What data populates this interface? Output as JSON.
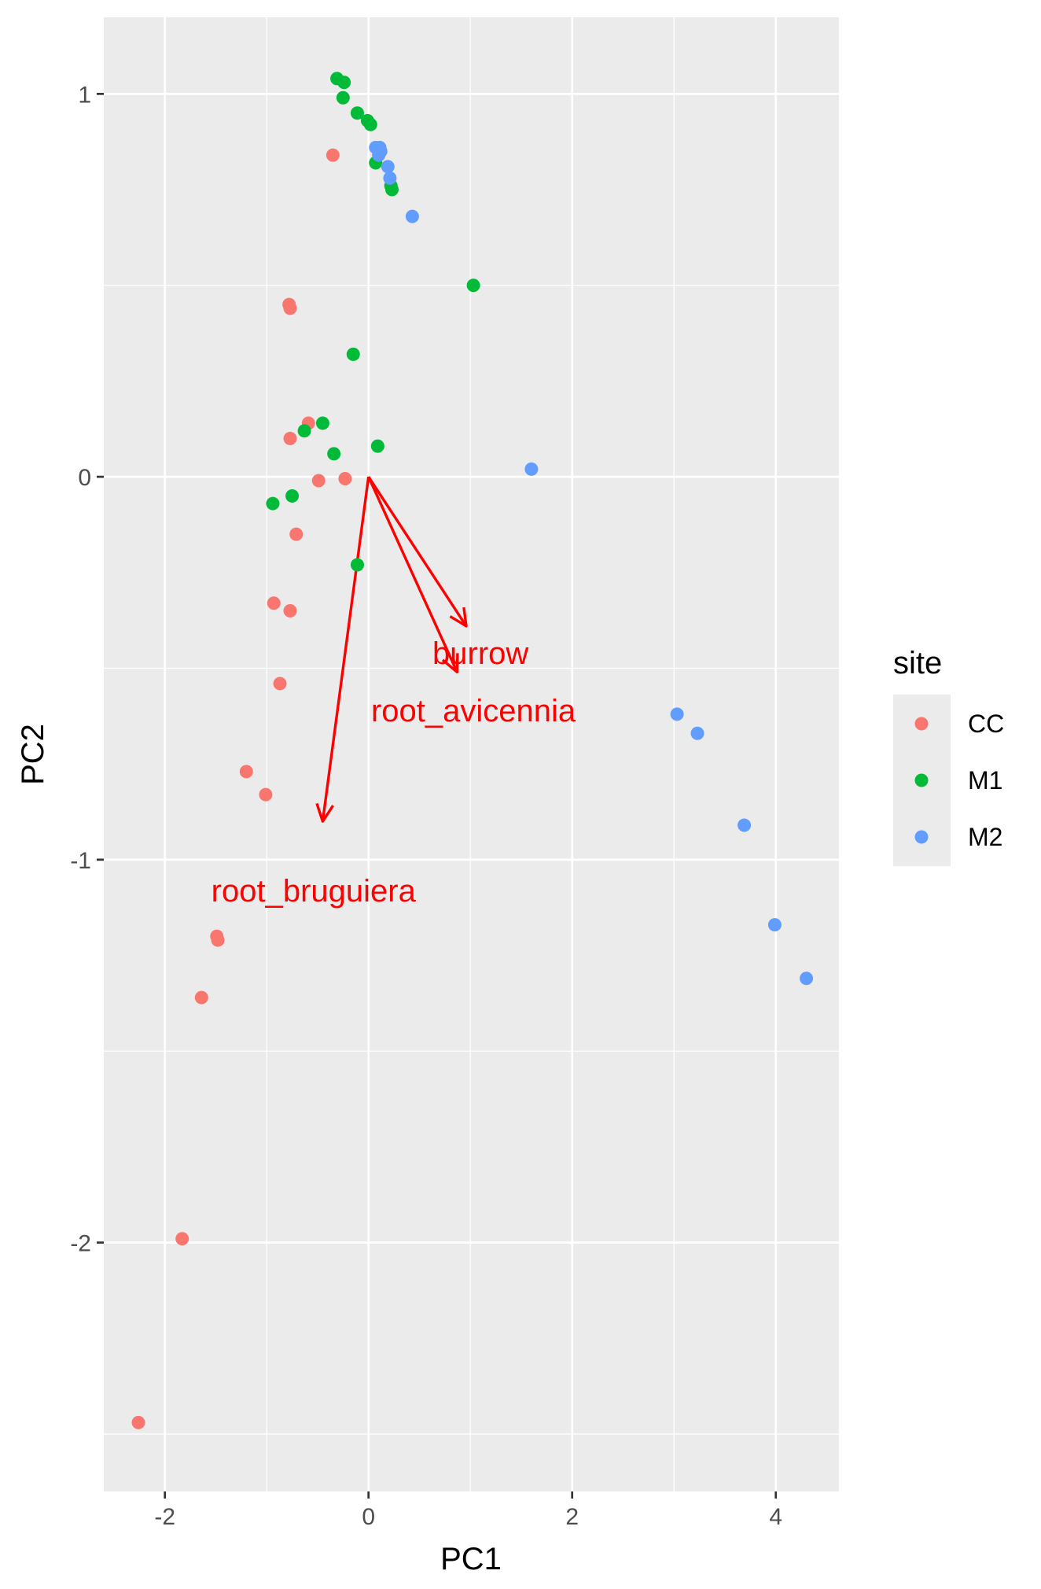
{
  "chart_data": {
    "type": "scatter",
    "title": "",
    "xlabel": "PC1",
    "ylabel": "PC2",
    "xlim": [
      -2.6,
      4.62
    ],
    "ylim": [
      -2.65,
      1.2
    ],
    "x_ticks": [
      -2,
      0,
      2,
      4
    ],
    "x_tick_labels": [
      "-2",
      "0",
      "2",
      "4"
    ],
    "y_ticks": [
      -2,
      -1,
      0,
      1
    ],
    "y_tick_labels": [
      "-2",
      "-1",
      "0",
      "1"
    ],
    "grid": true,
    "background": "#ebebeb",
    "legend": {
      "title": "site",
      "position": "right",
      "entries": [
        {
          "label": "CC",
          "color": "#F8766D"
        },
        {
          "label": "M1",
          "color": "#00BA38"
        },
        {
          "label": "M2",
          "color": "#619CFF"
        }
      ]
    },
    "series": [
      {
        "name": "CC",
        "color": "#F8766D",
        "points": [
          [
            -0.35,
            0.84
          ],
          [
            -0.78,
            0.45
          ],
          [
            -0.77,
            0.44
          ],
          [
            -0.59,
            0.14
          ],
          [
            -0.77,
            0.1
          ],
          [
            -0.49,
            -0.01
          ],
          [
            -0.23,
            -0.005
          ],
          [
            -0.71,
            -0.15
          ],
          [
            -0.93,
            -0.33
          ],
          [
            -0.77,
            -0.35
          ],
          [
            -0.87,
            -0.54
          ],
          [
            -1.2,
            -0.77
          ],
          [
            -1.01,
            -0.83
          ],
          [
            -1.49,
            -1.2
          ],
          [
            -1.48,
            -1.21
          ],
          [
            -1.64,
            -1.36
          ],
          [
            -1.83,
            -1.99
          ],
          [
            -2.26,
            -2.47
          ]
        ]
      },
      {
        "name": "M1",
        "color": "#00BA38",
        "points": [
          [
            -0.31,
            1.04
          ],
          [
            -0.24,
            1.03
          ],
          [
            -0.25,
            0.99
          ],
          [
            -0.11,
            0.95
          ],
          [
            -0.01,
            0.93
          ],
          [
            0.02,
            0.92
          ],
          [
            0.07,
            0.82
          ],
          [
            0.22,
            0.76
          ],
          [
            0.23,
            0.75
          ],
          [
            1.03,
            0.5
          ],
          [
            -0.15,
            0.32
          ],
          [
            -0.45,
            0.14
          ],
          [
            -0.63,
            0.12
          ],
          [
            -0.34,
            0.06
          ],
          [
            0.09,
            0.08
          ],
          [
            -0.94,
            -0.07
          ],
          [
            -0.75,
            -0.05
          ],
          [
            -0.11,
            -0.23
          ]
        ]
      },
      {
        "name": "M2",
        "color": "#619CFF",
        "points": [
          [
            0.07,
            0.86
          ],
          [
            0.11,
            0.86
          ],
          [
            0.12,
            0.85
          ],
          [
            0.1,
            0.84
          ],
          [
            0.19,
            0.81
          ],
          [
            0.21,
            0.78
          ],
          [
            0.43,
            0.68
          ],
          [
            1.6,
            0.02
          ],
          [
            3.03,
            -0.62
          ],
          [
            3.23,
            -0.67
          ],
          [
            3.69,
            -0.91
          ],
          [
            3.99,
            -1.17
          ],
          [
            4.3,
            -1.31
          ]
        ]
      }
    ],
    "arrows": {
      "color": "#FF0000",
      "items": [
        {
          "label": "burrow",
          "x": 0.96,
          "y": -0.39,
          "label_x": 1.1,
          "label_y": -0.46
        },
        {
          "label": "root_avicennia",
          "x": 0.87,
          "y": -0.51,
          "label_x": 1.03,
          "label_y": -0.61
        },
        {
          "label": "root_bruguiera",
          "x": -0.45,
          "y": -0.9,
          "label_x": -0.54,
          "label_y": -1.08
        }
      ]
    }
  }
}
